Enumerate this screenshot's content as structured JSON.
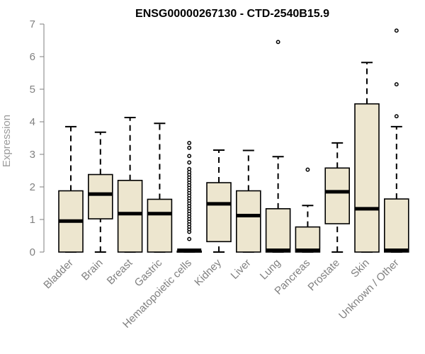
{
  "chart_data": {
    "type": "boxplot",
    "title": "ENSG00000267130 - CTD-2540B15.9",
    "ylabel": "Expression",
    "xlabel": "",
    "ylim": [
      0,
      7
    ],
    "yticks": [
      0,
      1,
      2,
      3,
      4,
      5,
      6,
      7
    ],
    "grid": false,
    "box_fill": "#ede6cf",
    "categories": [
      "Bladder",
      "Brain",
      "Breast",
      "Gastric",
      "Hematopoietic cells",
      "Kidney",
      "Liver",
      "Lung",
      "Pancreas",
      "Prostate",
      "Skin",
      "Unknown / Other"
    ],
    "boxes": [
      {
        "label": "Bladder",
        "min": 0,
        "q1": 0,
        "median": 0.95,
        "q3": 1.88,
        "max": 3.85,
        "outliers": []
      },
      {
        "label": "Brain",
        "min": 0,
        "q1": 1.02,
        "median": 1.78,
        "q3": 2.38,
        "max": 3.68,
        "outliers": []
      },
      {
        "label": "Breast",
        "min": 0,
        "q1": 0,
        "median": 1.18,
        "q3": 2.2,
        "max": 4.13,
        "outliers": []
      },
      {
        "label": "Gastric",
        "min": 0,
        "q1": 0,
        "median": 1.18,
        "q3": 1.62,
        "max": 3.95,
        "outliers": []
      },
      {
        "label": "Hematopoietic cells",
        "min": 0,
        "q1": 0,
        "median": 0.02,
        "q3": 0.03,
        "max": 0.05,
        "outliers": [
          0.4,
          0.62,
          0.7,
          0.78,
          0.86,
          0.94,
          1.02,
          1.1,
          1.18,
          1.26,
          1.34,
          1.42,
          1.5,
          1.58,
          1.66,
          1.74,
          1.82,
          1.9,
          1.98,
          2.06,
          2.14,
          2.22,
          2.3,
          2.38,
          2.46,
          2.55,
          2.75,
          2.95,
          3.2,
          3.35
        ]
      },
      {
        "label": "Kidney",
        "min": 0,
        "q1": 0.32,
        "median": 1.48,
        "q3": 2.13,
        "max": 3.13,
        "outliers": []
      },
      {
        "label": "Liver",
        "min": 0,
        "q1": 0,
        "median": 1.12,
        "q3": 1.88,
        "max": 3.12,
        "outliers": []
      },
      {
        "label": "Lung",
        "min": 0,
        "q1": 0,
        "median": 0.02,
        "q3": 1.33,
        "max": 2.93,
        "outliers": [
          6.45
        ]
      },
      {
        "label": "Pancreas",
        "min": 0,
        "q1": 0,
        "median": 0.02,
        "q3": 0.77,
        "max": 1.43,
        "outliers": [
          2.53
        ]
      },
      {
        "label": "Prostate",
        "min": 0,
        "q1": 0.87,
        "median": 1.85,
        "q3": 2.58,
        "max": 3.35,
        "outliers": []
      },
      {
        "label": "Skin",
        "min": 0,
        "q1": 0,
        "median": 1.33,
        "q3": 4.55,
        "max": 5.82,
        "outliers": []
      },
      {
        "label": "Unknown / Other",
        "min": 0,
        "q1": 0,
        "median": 0.02,
        "q3": 1.63,
        "max": 3.85,
        "outliers": [
          4.17,
          5.15,
          6.8
        ]
      }
    ]
  }
}
